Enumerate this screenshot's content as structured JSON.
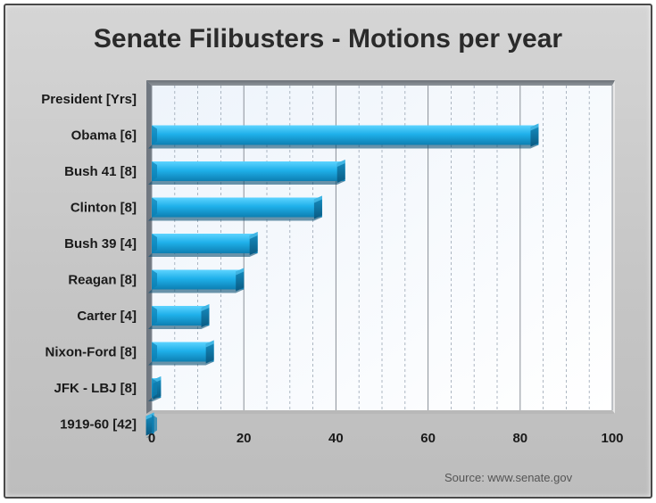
{
  "chart_data": {
    "type": "bar",
    "orientation": "horizontal",
    "title": "Senate Filibusters - Motions per year",
    "header_label": "President [Yrs]",
    "categories": [
      "Obama [6]",
      "Bush 41 [8]",
      "Clinton [8]",
      "Bush 39 [4]",
      "Reagan [8]",
      "Carter [4]",
      "Nixon-Ford [8]",
      "JFK - LBJ [8]",
      "1919-60 [42]"
    ],
    "values": [
      84,
      42,
      37,
      23,
      20,
      12.5,
      13.5,
      2,
      0.5
    ],
    "xlim": [
      0,
      100
    ],
    "xticks": [
      0,
      20,
      40,
      60,
      80,
      100
    ],
    "xlabel": "",
    "ylabel": "",
    "grid": "vertical dashed minor, solid major",
    "legend": "none",
    "bar_color": "#1fb0ea",
    "bar_dark_color": "#0f6e98",
    "source": "Source: www.senate.gov"
  }
}
